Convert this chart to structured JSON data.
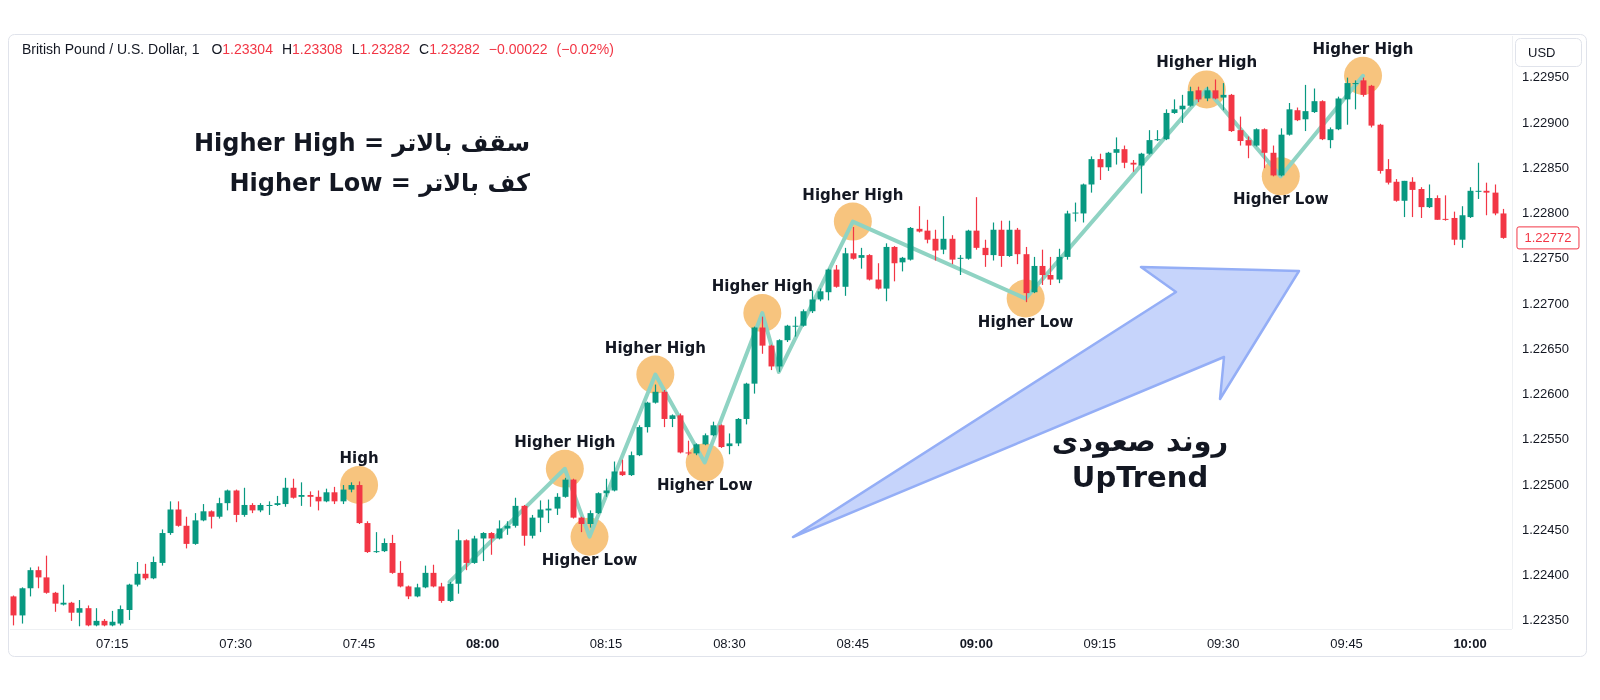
{
  "chart_data": {
    "type": "candlestick",
    "title": "British Pound / U.S. Dollar, 1",
    "subtitle": "O1.23304 H1.23308 L1.23282 C1.23282 −0.00022 (−0.02%)",
    "ylabel": "USD",
    "xlim": [
      7.043,
      10.085
    ],
    "ylim": [
      1.2234,
      1.22995
    ],
    "xticks": [
      {
        "value": 7.25,
        "label": "07:15"
      },
      {
        "value": 7.5,
        "label": "07:30"
      },
      {
        "value": 7.75,
        "label": "07:45"
      },
      {
        "value": 8,
        "label": "08:00"
      },
      {
        "value": 8.25,
        "label": "08:15"
      },
      {
        "value": 8.5,
        "label": "08:30"
      },
      {
        "value": 8.75,
        "label": "08:45"
      },
      {
        "value": 9,
        "label": "09:00"
      },
      {
        "value": 9.25,
        "label": "09:15"
      },
      {
        "value": 9.5,
        "label": "09:30"
      },
      {
        "value": 9.75,
        "label": "09:45"
      },
      {
        "value": 10,
        "label": "10:00"
      }
    ],
    "yticks": [
      {
        "value": 1.2235,
        "label": "1.22350"
      },
      {
        "value": 1.224,
        "label": "1.22400"
      },
      {
        "value": 1.2245,
        "label": "1.22450"
      },
      {
        "value": 1.225,
        "label": "1.22500"
      },
      {
        "value": 1.2255,
        "label": "1.22550"
      },
      {
        "value": 1.226,
        "label": "1.22600"
      },
      {
        "value": 1.2265,
        "label": "1.22650"
      },
      {
        "value": 1.227,
        "label": "1.22700"
      },
      {
        "value": 1.2275,
        "label": "1.22750"
      },
      {
        "value": 1.228,
        "label": "1.22800"
      },
      {
        "value": 1.2285,
        "label": "1.22850"
      },
      {
        "value": 1.229,
        "label": "1.22900"
      },
      {
        "value": 1.2295,
        "label": "1.22950"
      }
    ],
    "series": [
      {
        "type": "scatter",
        "color": "#f7c47e",
        "marker": "circle",
        "x": [
          7.75,
          8.1667,
          8.2167,
          8.35,
          8.45,
          8.5667,
          8.75,
          9.1,
          9.4667,
          9.6167,
          9.7833
        ],
        "values": [
          1.22499,
          1.22517,
          1.22442,
          1.22621,
          1.22524,
          1.22689,
          1.2279,
          1.22705,
          1.22936,
          1.2284,
          1.22951
        ]
      },
      {
        "type": "line",
        "color": "#8fd3c3",
        "x": [
          7.9333,
          8.1667,
          8.2167,
          8.35,
          8.45,
          8.5667,
          8.6,
          8.75,
          9.1,
          9.4667,
          9.6167,
          9.7833
        ],
        "values": [
          1.22392,
          1.22517,
          1.22442,
          1.22621,
          1.22524,
          1.22689,
          1.22624,
          1.2279,
          1.22705,
          1.22936,
          1.2284,
          1.22951
        ]
      },
      {
        "type": "candlestick",
        "x": [
          7.05,
          7.0667,
          7.0833,
          7.1,
          7.1167,
          7.1333,
          7.15,
          7.1667,
          7.1833,
          7.2,
          7.2167,
          7.2333,
          7.25,
          7.2667,
          7.2833,
          7.3,
          7.3167,
          7.3333,
          7.35,
          7.3667,
          7.3833,
          7.4,
          7.4167,
          7.4333,
          7.45,
          7.4667,
          7.4833,
          7.5,
          7.5167,
          7.5333,
          7.55,
          7.5667,
          7.5833,
          7.6,
          7.6167,
          7.6333,
          7.65,
          7.6667,
          7.6833,
          7.7,
          7.7167,
          7.7333,
          7.75,
          7.7667,
          7.7833,
          7.8,
          7.8167,
          7.8333,
          7.85,
          7.8667,
          7.8833,
          7.9,
          7.9167,
          7.9333,
          7.95,
          7.9667,
          7.9833,
          8,
          8.0167,
          8.0333,
          8.05,
          8.0667,
          8.0833,
          8.1,
          8.1167,
          8.1333,
          8.15,
          8.1667,
          8.1833,
          8.2,
          8.2167,
          8.2333,
          8.25,
          8.2667,
          8.2833,
          8.3,
          8.3167,
          8.3333,
          8.35,
          8.3667,
          8.3833,
          8.4,
          8.4167,
          8.4333,
          8.45,
          8.4667,
          8.4833,
          8.5,
          8.5167,
          8.5333,
          8.55,
          8.5667,
          8.5833,
          8.6,
          8.6167,
          8.6333,
          8.65,
          8.6667,
          8.6833,
          8.7,
          8.7167,
          8.7333,
          8.75,
          8.7667,
          8.7833,
          8.8,
          8.8167,
          8.8333,
          8.85,
          8.8667,
          8.8833,
          8.9,
          8.9167,
          8.9333,
          8.95,
          8.9667,
          8.9833,
          9,
          9.0167,
          9.0333,
          9.05,
          9.0667,
          9.0833,
          9.1,
          9.1167,
          9.1333,
          9.15,
          9.1667,
          9.1833,
          9.2,
          9.2167,
          9.2333,
          9.25,
          9.2667,
          9.2833,
          9.3,
          9.3167,
          9.3333,
          9.35,
          9.3667,
          9.3833,
          9.4,
          9.4167,
          9.4333,
          9.45,
          9.4667,
          9.4833,
          9.5,
          9.5167,
          9.5333,
          9.55,
          9.5667,
          9.5833,
          9.6,
          9.6167,
          9.6333,
          9.65,
          9.6667,
          9.6833,
          9.7,
          9.7167,
          9.7333,
          9.75,
          9.7667,
          9.7833,
          9.8,
          9.8167,
          9.8333,
          9.85,
          9.8667,
          9.8833,
          9.9,
          9.9167,
          9.9333,
          9.95,
          9.9667,
          9.9833,
          10,
          10.0167,
          10.0333,
          10.05,
          10.0667
        ],
        "ohlc": [
          [
            1.22376,
            1.22377,
            1.22344,
            1.22355
          ],
          [
            1.22355,
            1.22386,
            1.22346,
            1.22385
          ],
          [
            1.22385,
            1.22408,
            1.22376,
            1.22405
          ],
          [
            1.22405,
            1.22409,
            1.22385,
            1.22397
          ],
          [
            1.22397,
            1.22421,
            1.22379,
            1.2238
          ],
          [
            1.2238,
            1.22381,
            1.22359,
            1.22368
          ],
          [
            1.22367,
            1.22389,
            1.22366,
            1.22369
          ],
          [
            1.22369,
            1.2237,
            1.22349,
            1.22358
          ],
          [
            1.22358,
            1.22372,
            1.22343,
            1.22363
          ],
          [
            1.22363,
            1.22366,
            1.22343,
            1.22344
          ],
          [
            1.22344,
            1.22363,
            1.22343,
            1.22349
          ],
          [
            1.22349,
            1.22351,
            1.22343,
            1.22344
          ],
          [
            1.22344,
            1.2236,
            1.22343,
            1.22348
          ],
          [
            1.22346,
            1.22366,
            1.22344,
            1.22362
          ],
          [
            1.22361,
            1.2239,
            1.2235,
            1.22389
          ],
          [
            1.22389,
            1.22414,
            1.22387,
            1.22401
          ],
          [
            1.22401,
            1.22412,
            1.22394,
            1.22396
          ],
          [
            1.22396,
            1.2242,
            1.22395,
            1.22414
          ],
          [
            1.22413,
            1.2245,
            1.2241,
            1.22446
          ],
          [
            1.22446,
            1.22481,
            1.22444,
            1.22472
          ],
          [
            1.22472,
            1.22481,
            1.22453,
            1.22454
          ],
          [
            1.22454,
            1.22464,
            1.22429,
            1.22434
          ],
          [
            1.22434,
            1.22468,
            1.22433,
            1.2246
          ],
          [
            1.2246,
            1.22478,
            1.22459,
            1.2247
          ],
          [
            1.2247,
            1.22471,
            1.22451,
            1.22464
          ],
          [
            1.22464,
            1.22485,
            1.22462,
            1.22479
          ],
          [
            1.22479,
            1.22494,
            1.22471,
            1.22493
          ],
          [
            1.22493,
            1.22494,
            1.22458,
            1.22466
          ],
          [
            1.22466,
            1.22496,
            1.22464,
            1.22477
          ],
          [
            1.22477,
            1.22479,
            1.22468,
            1.22471
          ],
          [
            1.22471,
            1.22479,
            1.22469,
            1.22477
          ],
          [
            1.22476,
            1.22481,
            1.22466,
            1.22477
          ],
          [
            1.22477,
            1.22487,
            1.22476,
            1.22479
          ],
          [
            1.22478,
            1.22507,
            1.22475,
            1.22496
          ],
          [
            1.22496,
            1.22506,
            1.22484,
            1.22485
          ],
          [
            1.22486,
            1.22502,
            1.22476,
            1.22488
          ],
          [
            1.22488,
            1.22492,
            1.22475,
            1.22486
          ],
          [
            1.22486,
            1.22493,
            1.22471,
            1.22481
          ],
          [
            1.22481,
            1.22495,
            1.2248,
            1.22491
          ],
          [
            1.22491,
            1.22497,
            1.22478,
            1.22481
          ],
          [
            1.22481,
            1.22499,
            1.22478,
            1.22494
          ],
          [
            1.22494,
            1.22502,
            1.22491,
            1.22499
          ],
          [
            1.22499,
            1.22503,
            1.22456,
            1.22457
          ],
          [
            1.22457,
            1.22459,
            1.22424,
            1.22425
          ],
          [
            1.22425,
            1.22447,
            1.22424,
            1.22426
          ],
          [
            1.22426,
            1.2244,
            1.22425,
            1.22435
          ],
          [
            1.22435,
            1.22444,
            1.22401,
            1.22402
          ],
          [
            1.22402,
            1.22415,
            1.22386,
            1.22387
          ],
          [
            1.22387,
            1.22388,
            1.22373,
            1.22376
          ],
          [
            1.22376,
            1.2239,
            1.22375,
            1.22386
          ],
          [
            1.22386,
            1.2241,
            1.22385,
            1.22402
          ],
          [
            1.22402,
            1.22411,
            1.22386,
            1.22387
          ],
          [
            1.22387,
            1.22391,
            1.22369,
            1.22371
          ],
          [
            1.22371,
            1.22392,
            1.2237,
            1.2239
          ],
          [
            1.2239,
            1.2245,
            1.22379,
            1.22438
          ],
          [
            1.22438,
            1.22439,
            1.22405,
            1.22413
          ],
          [
            1.22413,
            1.22443,
            1.22412,
            1.2244
          ],
          [
            1.2244,
            1.22447,
            1.22415,
            1.22446
          ],
          [
            1.22446,
            1.22447,
            1.22422,
            1.2244
          ],
          [
            1.2244,
            1.2246,
            1.22439,
            1.22451
          ],
          [
            1.22451,
            1.22459,
            1.22444,
            1.22454
          ],
          [
            1.22454,
            1.22485,
            1.22452,
            1.22476
          ],
          [
            1.22476,
            1.22477,
            1.22432,
            1.22443
          ],
          [
            1.22443,
            1.22466,
            1.2244,
            1.22463
          ],
          [
            1.22463,
            1.22482,
            1.22447,
            1.22472
          ],
          [
            1.22471,
            1.22483,
            1.22457,
            1.22473
          ],
          [
            1.22473,
            1.2249,
            1.22466,
            1.22486
          ],
          [
            1.22486,
            1.22507,
            1.22485,
            1.22505
          ],
          [
            1.22505,
            1.22506,
            1.22462,
            1.22463
          ],
          [
            1.22463,
            1.22464,
            1.22447,
            1.22456
          ],
          [
            1.22456,
            1.22471,
            1.22452,
            1.22468
          ],
          [
            1.22468,
            1.22491,
            1.22467,
            1.2249
          ],
          [
            1.2249,
            1.22506,
            1.22486,
            1.22493
          ],
          [
            1.22493,
            1.22525,
            1.22492,
            1.22514
          ],
          [
            1.22514,
            1.22527,
            1.22509,
            1.2251
          ],
          [
            1.2251,
            1.22536,
            1.22509,
            1.22532
          ],
          [
            1.22532,
            1.22565,
            1.22531,
            1.22563
          ],
          [
            1.22563,
            1.22591,
            1.22557,
            1.2259
          ],
          [
            1.2259,
            1.2261,
            1.22589,
            1.22602
          ],
          [
            1.22602,
            1.22604,
            1.22563,
            1.22572
          ],
          [
            1.22572,
            1.22577,
            1.22563,
            1.22576
          ],
          [
            1.22576,
            1.22578,
            1.22534,
            1.22535
          ],
          [
            1.22535,
            1.22548,
            1.22532,
            1.22534
          ],
          [
            1.22534,
            1.22545,
            1.22532,
            1.22544
          ],
          [
            1.22544,
            1.22556,
            1.22543,
            1.22554
          ],
          [
            1.22554,
            1.22569,
            1.22553,
            1.22565
          ],
          [
            1.22565,
            1.22566,
            1.2254,
            1.22541
          ],
          [
            1.22542,
            1.22556,
            1.22533,
            1.22545
          ],
          [
            1.22545,
            1.22573,
            1.22542,
            1.22572
          ],
          [
            1.22572,
            1.22612,
            1.22566,
            1.22611
          ],
          [
            1.22611,
            1.22674,
            1.226,
            1.22673
          ],
          [
            1.22673,
            1.22685,
            1.22644,
            1.22653
          ],
          [
            1.22653,
            1.22654,
            1.22626,
            1.2263
          ],
          [
            1.2263,
            1.2266,
            1.22624,
            1.22659
          ],
          [
            1.22659,
            1.22676,
            1.22657,
            1.22675
          ],
          [
            1.22674,
            1.22685,
            1.22663,
            1.22675
          ],
          [
            1.22675,
            1.22693,
            1.22674,
            1.22691
          ],
          [
            1.22691,
            1.22714,
            1.22689,
            1.22704
          ],
          [
            1.22704,
            1.22716,
            1.22702,
            1.22713
          ],
          [
            1.22712,
            1.22738,
            1.22703,
            1.22737
          ],
          [
            1.22737,
            1.22742,
            1.22717,
            1.22718
          ],
          [
            1.22718,
            1.22761,
            1.22708,
            1.22755
          ],
          [
            1.22755,
            1.22784,
            1.22748,
            1.22749
          ],
          [
            1.2275,
            1.22761,
            1.22738,
            1.22753
          ],
          [
            1.22753,
            1.22754,
            1.22725,
            1.22726
          ],
          [
            1.22726,
            1.22744,
            1.22715,
            1.22716
          ],
          [
            1.22716,
            1.22766,
            1.22702,
            1.22762
          ],
          [
            1.22762,
            1.22763,
            1.22724,
            1.22744
          ],
          [
            1.22745,
            1.22751,
            1.22735,
            1.2275
          ],
          [
            1.22748,
            1.22784,
            1.22747,
            1.22783
          ],
          [
            1.22782,
            1.22807,
            1.22778,
            1.22779
          ],
          [
            1.2278,
            1.22792,
            1.22766,
            1.2277
          ],
          [
            1.22771,
            1.22781,
            1.22747,
            1.22758
          ],
          [
            1.22759,
            1.22796,
            1.22754,
            1.22771
          ],
          [
            1.22771,
            1.22775,
            1.22743,
            1.22748
          ],
          [
            1.22749,
            1.22753,
            1.22731,
            1.2275
          ],
          [
            1.22749,
            1.22781,
            1.22748,
            1.2278
          ],
          [
            1.2278,
            1.22817,
            1.22759,
            1.22761
          ],
          [
            1.22761,
            1.2277,
            1.2274,
            1.22753
          ],
          [
            1.22753,
            1.22789,
            1.22747,
            1.22781
          ],
          [
            1.22781,
            1.22791,
            1.2274,
            1.22752
          ],
          [
            1.22752,
            1.22791,
            1.22751,
            1.22781
          ],
          [
            1.22781,
            1.22783,
            1.22743,
            1.22754
          ],
          [
            1.22754,
            1.22762,
            1.22701,
            1.22711
          ],
          [
            1.22712,
            1.22751,
            1.22711,
            1.22741
          ],
          [
            1.22741,
            1.22759,
            1.2272,
            1.22731
          ],
          [
            1.22731,
            1.22751,
            1.2272,
            1.22726
          ],
          [
            1.22726,
            1.2276,
            1.22722,
            1.22751
          ],
          [
            1.22751,
            1.22802,
            1.22748,
            1.22799
          ],
          [
            1.22799,
            1.22811,
            1.2279,
            1.228
          ],
          [
            1.22799,
            1.22832,
            1.22789,
            1.22831
          ],
          [
            1.22831,
            1.22862,
            1.22822,
            1.22859
          ],
          [
            1.22859,
            1.22865,
            1.22836,
            1.2285
          ],
          [
            1.2285,
            1.22867,
            1.22846,
            1.22866
          ],
          [
            1.22866,
            1.22883,
            1.22853,
            1.2287
          ],
          [
            1.2287,
            1.22874,
            1.22849,
            1.22855
          ],
          [
            1.22855,
            1.22858,
            1.22845,
            1.22853
          ],
          [
            1.22852,
            1.22866,
            1.22821,
            1.22865
          ],
          [
            1.22865,
            1.22891,
            1.22864,
            1.2288
          ],
          [
            1.2288,
            1.22891,
            1.22879,
            1.22881
          ],
          [
            1.22881,
            1.22914,
            1.2288,
            1.2291
          ],
          [
            1.2291,
            1.22925,
            1.22909,
            1.22914
          ],
          [
            1.22914,
            1.2293,
            1.22899,
            1.22918
          ],
          [
            1.22918,
            1.22939,
            1.22917,
            1.22934
          ],
          [
            1.22935,
            1.22939,
            1.22922,
            1.22925
          ],
          [
            1.22926,
            1.22939,
            1.22923,
            1.22935
          ],
          [
            1.22935,
            1.22947,
            1.22925,
            1.22926
          ],
          [
            1.22927,
            1.22943,
            1.22913,
            1.2293
          ],
          [
            1.2293,
            1.22931,
            1.22889,
            1.2289
          ],
          [
            1.22891,
            1.22906,
            1.22874,
            1.22879
          ],
          [
            1.2288,
            1.22884,
            1.2286,
            1.22874
          ],
          [
            1.22874,
            1.22893,
            1.22873,
            1.22892
          ],
          [
            1.22892,
            1.22893,
            1.22849,
            1.22866
          ],
          [
            1.22866,
            1.22874,
            1.2284,
            1.22841
          ],
          [
            1.22841,
            1.22893,
            1.2284,
            1.22886
          ],
          [
            1.22886,
            1.22921,
            1.22885,
            1.22914
          ],
          [
            1.22913,
            1.22916,
            1.22901,
            1.22902
          ],
          [
            1.22903,
            1.22941,
            1.2289,
            1.22912
          ],
          [
            1.22911,
            1.22937,
            1.2291,
            1.22923
          ],
          [
            1.22923,
            1.22924,
            1.2288,
            1.22881
          ],
          [
            1.2288,
            1.22894,
            1.22871,
            1.22892
          ],
          [
            1.22892,
            1.22928,
            1.22891,
            1.22926
          ],
          [
            1.22925,
            1.22949,
            1.22897,
            1.22943
          ],
          [
            1.22942,
            1.22946,
            1.22914,
            1.22943
          ],
          [
            1.22946,
            1.22949,
            1.22928,
            1.2293
          ],
          [
            1.2294,
            1.22941,
            1.22894,
            1.22896
          ],
          [
            1.22897,
            1.22898,
            1.22843,
            1.22846
          ],
          [
            1.22848,
            1.22859,
            1.22831,
            1.22833
          ],
          [
            1.22834,
            1.22837,
            1.22812,
            1.22813
          ],
          [
            1.22813,
            1.22835,
            1.22795,
            1.22835
          ],
          [
            1.22834,
            1.22839,
            1.22795,
            1.22825
          ],
          [
            1.22826,
            1.22828,
            1.22794,
            1.22806
          ],
          [
            1.22806,
            1.22831,
            1.22805,
            1.22816
          ],
          [
            1.22816,
            1.22819,
            1.22792,
            1.22792
          ],
          [
            1.22793,
            1.22819,
            1.22791,
            1.22792
          ],
          [
            1.22794,
            1.22801,
            1.22764,
            1.2277
          ],
          [
            1.2277,
            1.22807,
            1.22761,
            1.22797
          ],
          [
            1.22795,
            1.22828,
            1.22794,
            1.22824
          ],
          [
            1.22823,
            1.22855,
            1.22815,
            1.22824
          ],
          [
            1.22824,
            1.22833,
            1.22797,
            1.22822
          ],
          [
            1.22822,
            1.22831,
            1.22797,
            1.22799
          ],
          [
            1.22799,
            1.22804,
            1.22771,
            1.22772
          ]
        ],
        "colors": [
          "#f23645",
          "#089981",
          "#089981",
          "#f23645",
          "#f23645",
          "#f23645",
          "#089981",
          "#f23645",
          "#089981",
          "#f23645",
          "#089981",
          "#f23645",
          "#089981",
          "#089981",
          "#089981",
          "#089981",
          "#f23645",
          "#089981",
          "#089981",
          "#089981",
          "#f23645",
          "#f23645",
          "#089981",
          "#089981",
          "#f23645",
          "#089981",
          "#089981",
          "#f23645",
          "#089981",
          "#f23645",
          "#089981",
          "#089981",
          "#089981",
          "#089981",
          "#f23645",
          "#089981",
          "#f23645",
          "#f23645",
          "#089981",
          "#f23645",
          "#089981",
          "#089981",
          "#f23645",
          "#f23645",
          "#089981",
          "#089981",
          "#f23645",
          "#f23645",
          "#f23645",
          "#089981",
          "#089981",
          "#f23645",
          "#f23645",
          "#089981",
          "#089981",
          "#f23645",
          "#089981",
          "#089981",
          "#f23645",
          "#089981",
          "#089981",
          "#089981",
          "#f23645",
          "#089981",
          "#089981",
          "#089981",
          "#089981",
          "#089981",
          "#f23645",
          "#f23645",
          "#089981",
          "#089981",
          "#089981",
          "#089981",
          "#f23645",
          "#089981",
          "#089981",
          "#089981",
          "#089981",
          "#f23645",
          "#089981",
          "#f23645",
          "#f23645",
          "#089981",
          "#089981",
          "#089981",
          "#f23645",
          "#089981",
          "#089981",
          "#089981",
          "#089981",
          "#f23645",
          "#f23645",
          "#089981",
          "#089981",
          "#089981",
          "#089981",
          "#089981",
          "#089981",
          "#089981",
          "#f23645",
          "#089981",
          "#f23645",
          "#089981",
          "#f23645",
          "#f23645",
          "#089981",
          "#f23645",
          "#089981",
          "#089981",
          "#f23645",
          "#f23645",
          "#f23645",
          "#089981",
          "#f23645",
          "#089981",
          "#089981",
          "#f23645",
          "#f23645",
          "#089981",
          "#f23645",
          "#089981",
          "#f23645",
          "#f23645",
          "#089981",
          "#f23645",
          "#f23645",
          "#089981",
          "#089981",
          "#089981",
          "#089981",
          "#089981",
          "#f23645",
          "#089981",
          "#089981",
          "#f23645",
          "#f23645",
          "#089981",
          "#089981",
          "#089981",
          "#089981",
          "#089981",
          "#089981",
          "#089981",
          "#f23645",
          "#089981",
          "#f23645",
          "#089981",
          "#f23645",
          "#f23645",
          "#f23645",
          "#089981",
          "#f23645",
          "#f23645",
          "#089981",
          "#089981",
          "#f23645",
          "#089981",
          "#089981",
          "#f23645",
          "#089981",
          "#089981",
          "#089981",
          "#089981",
          "#f23645",
          "#f23645",
          "#f23645",
          "#f23645",
          "#f23645",
          "#089981",
          "#f23645",
          "#f23645",
          "#089981",
          "#f23645",
          "#f23645",
          "#f23645",
          "#089981",
          "#089981",
          "#089981",
          "#f23645",
          "#f23645",
          "#f23645"
        ]
      }
    ],
    "annotations": [
      "سقف بالاتر = Higher High",
      "کف بالاتر = Higher Low",
      "روند صعودی",
      "UpTrend",
      {
        "text": "High",
        "x": 7.75,
        "y": 1.22499
      },
      {
        "text": "Higher High",
        "x": 8.1667,
        "y": 1.22517
      },
      {
        "text": "Higher Low",
        "x": 8.2167,
        "y": 1.22442
      },
      {
        "text": "Higher High",
        "x": 8.35,
        "y": 1.22621
      },
      {
        "text": "Higher Low",
        "x": 8.45,
        "y": 1.22524
      },
      {
        "text": "Higher High",
        "x": 8.5667,
        "y": 1.22689
      },
      {
        "text": "Higher High",
        "x": 8.75,
        "y": 1.2279
      },
      {
        "text": "Higher Low",
        "x": 9.1,
        "y": 1.22705
      },
      {
        "text": "Higher High",
        "x": 9.4667,
        "y": 1.22936
      },
      {
        "text": "Higher Low",
        "x": 9.6167,
        "y": 1.2284
      },
      {
        "text": "Higher High",
        "x": 9.7833,
        "y": 1.22951
      },
      {
        "text": "1.22772",
        "x": 10.0667,
        "y": 1.22772
      }
    ]
  }
}
